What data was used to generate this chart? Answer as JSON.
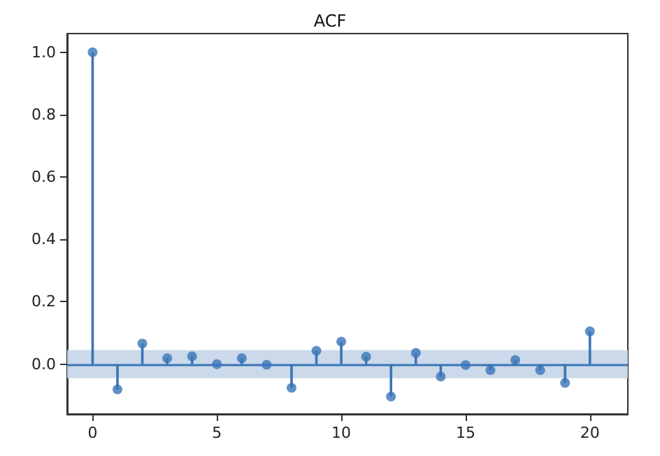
{
  "chart_data": {
    "type": "lollipop",
    "title": "ACF",
    "x": [
      0,
      1,
      2,
      3,
      4,
      5,
      6,
      7,
      8,
      9,
      10,
      11,
      12,
      13,
      14,
      15,
      16,
      17,
      18,
      19,
      20
    ],
    "series": [
      {
        "color": "#3a75b8",
        "values": [
          1.0,
          -0.081,
          0.066,
          0.019,
          0.025,
          0.0,
          0.019,
          -0.002,
          -0.076,
          0.043,
          0.072,
          0.024,
          -0.104,
          0.036,
          -0.04,
          -0.003,
          -0.019,
          0.013,
          -0.019,
          -0.06,
          0.105
        ]
      }
    ],
    "xlim": [
      -1.025,
      21.525
    ],
    "xticks": [
      0,
      5,
      10,
      15,
      20
    ],
    "ylim": [
      -0.16,
      1.06
    ],
    "yticks": [
      {
        "value": 0,
        "label": "0.0"
      },
      {
        "value": 0.2,
        "label": "0.2"
      },
      {
        "value": 0.4,
        "label": "0.4"
      },
      {
        "value": 0.6,
        "label": "0.6"
      },
      {
        "value": 0.8,
        "label": "0.8"
      },
      {
        "value": 1,
        "label": "1.0"
      }
    ],
    "ref_lines": [
      {
        "axis": "y",
        "value": 0,
        "color": "#3a75b8"
      }
    ],
    "bands": [
      {
        "axis": "y",
        "from": -0.045,
        "to": 0.045,
        "color": "#c5d5e8"
      }
    ],
    "marker": "circle"
  }
}
